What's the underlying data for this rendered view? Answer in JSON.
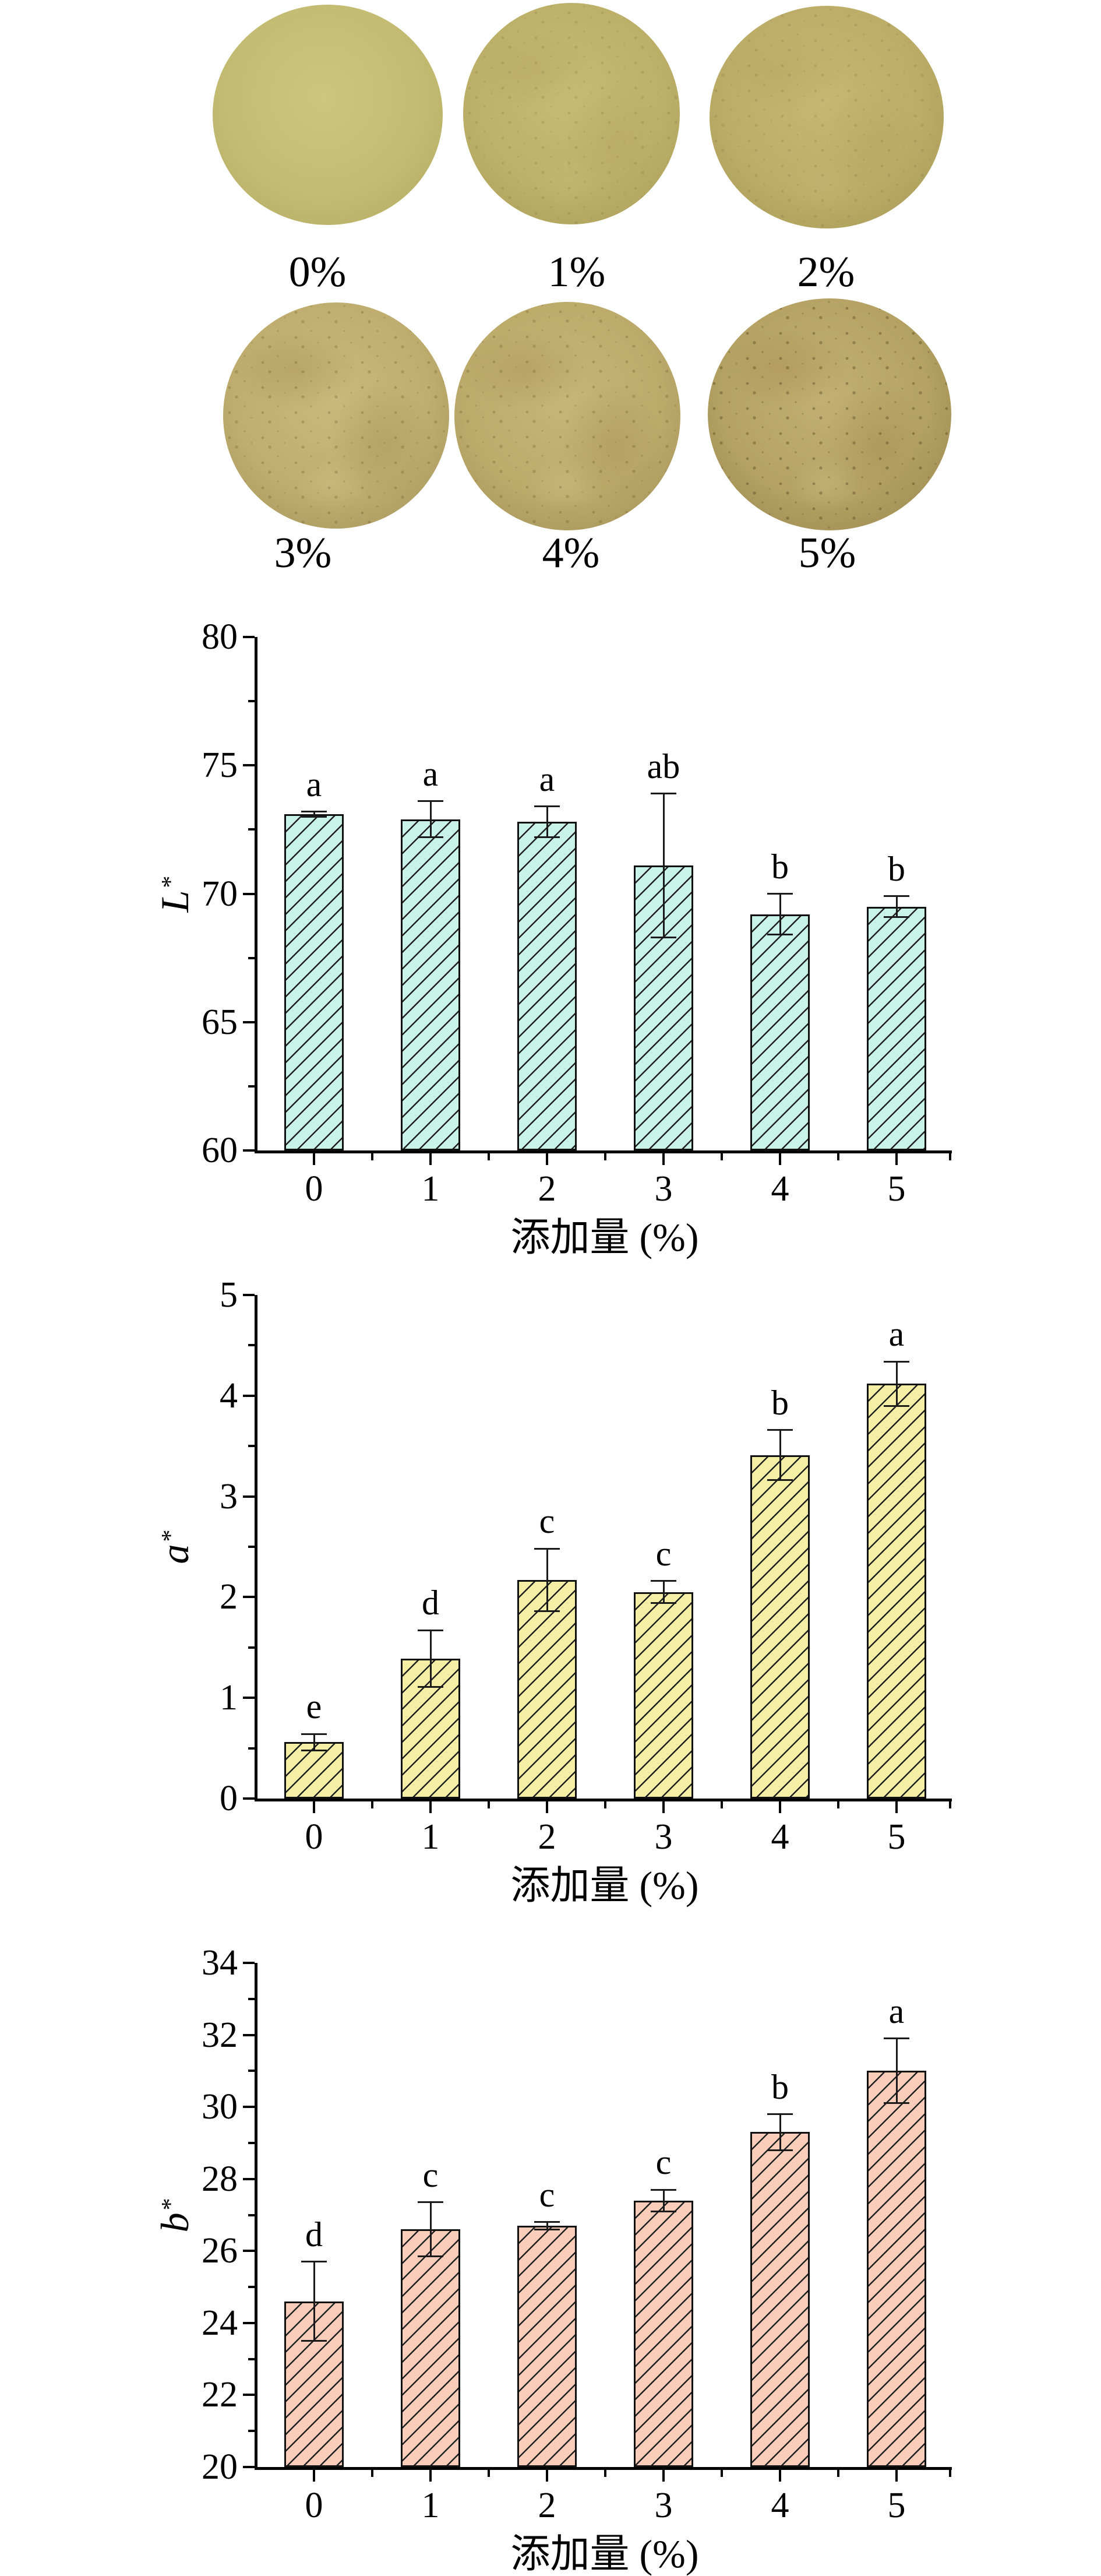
{
  "figure": {
    "background": "#ffffff"
  },
  "photos": {
    "items": [
      {
        "label": "0%",
        "mid": "#cdc67e",
        "base": "#c3bc72",
        "edge": "#b2aa60",
        "grain": "none",
        "mottle": "off"
      },
      {
        "label": "1%",
        "mid": "#c6bb74",
        "base": "#bdb16a",
        "edge": "#a89c57",
        "grain": "light",
        "mottle": "light"
      },
      {
        "label": "2%",
        "mid": "#c6b872",
        "base": "#bcae68",
        "edge": "#a59855",
        "grain": "light",
        "mottle": "light"
      },
      {
        "label": "3%",
        "mid": "#c9b97c",
        "base": "#bfae6f",
        "edge": "#a3935a",
        "grain": "medium",
        "mottle": "on"
      },
      {
        "label": "4%",
        "mid": "#c7b678",
        "base": "#bdab6c",
        "edge": "#a09055",
        "grain": "medium",
        "mottle": "on"
      },
      {
        "label": "5%",
        "mid": "#c3af73",
        "base": "#b5a264",
        "edge": "#95844c",
        "grain": "strong",
        "mottle": "on"
      }
    ]
  },
  "chart_data": [
    {
      "type": "bar",
      "title": "",
      "ylabel": "L*",
      "ylabel_letter": "L",
      "ylabel_sup": "*",
      "xlabel": "添加量 (%)",
      "categories": [
        "0",
        "1",
        "2",
        "3",
        "4",
        "5"
      ],
      "values": [
        73.1,
        72.9,
        72.8,
        71.1,
        69.2,
        69.5
      ],
      "errors": [
        0.1,
        0.7,
        0.6,
        2.8,
        0.8,
        0.4
      ],
      "sig_letters": [
        "a",
        "a",
        "a",
        "ab",
        "b",
        "b"
      ],
      "ylim": [
        60,
        80
      ],
      "ytick_major": 5,
      "ytick_minor": 2.5,
      "bar_color": "#c9f3e9",
      "hatch": "/",
      "grid": false,
      "legend": null
    },
    {
      "type": "bar",
      "title": "",
      "ylabel": "a*",
      "ylabel_letter": "a",
      "ylabel_sup": "*",
      "xlabel": "添加量 (%)",
      "categories": [
        "0",
        "1",
        "2",
        "3",
        "4",
        "5"
      ],
      "values": [
        0.56,
        1.39,
        2.17,
        2.05,
        3.41,
        4.12
      ],
      "errors": [
        0.08,
        0.28,
        0.31,
        0.11,
        0.25,
        0.22
      ],
      "sig_letters": [
        "e",
        "d",
        "c",
        "c",
        "b",
        "a"
      ],
      "ylim": [
        0,
        5
      ],
      "ytick_major": 1,
      "ytick_minor": 0.5,
      "bar_color": "#f4efa5",
      "hatch": "/",
      "grid": false,
      "legend": null
    },
    {
      "type": "bar",
      "title": "",
      "ylabel": "b*",
      "ylabel_letter": "b",
      "ylabel_sup": "*",
      "xlabel": "添加量 (%)",
      "categories": [
        "0",
        "1",
        "2",
        "3",
        "4",
        "5"
      ],
      "values": [
        24.6,
        26.6,
        26.7,
        27.4,
        29.3,
        31.0
      ],
      "errors": [
        1.1,
        0.75,
        0.1,
        0.3,
        0.5,
        0.9
      ],
      "sig_letters": [
        "d",
        "c",
        "c",
        "c",
        "b",
        "a"
      ],
      "ylim": [
        20,
        34
      ],
      "ytick_major": 2,
      "ytick_minor": 1,
      "bar_color": "#f9cdba",
      "hatch": "/",
      "grid": false,
      "legend": null
    }
  ]
}
